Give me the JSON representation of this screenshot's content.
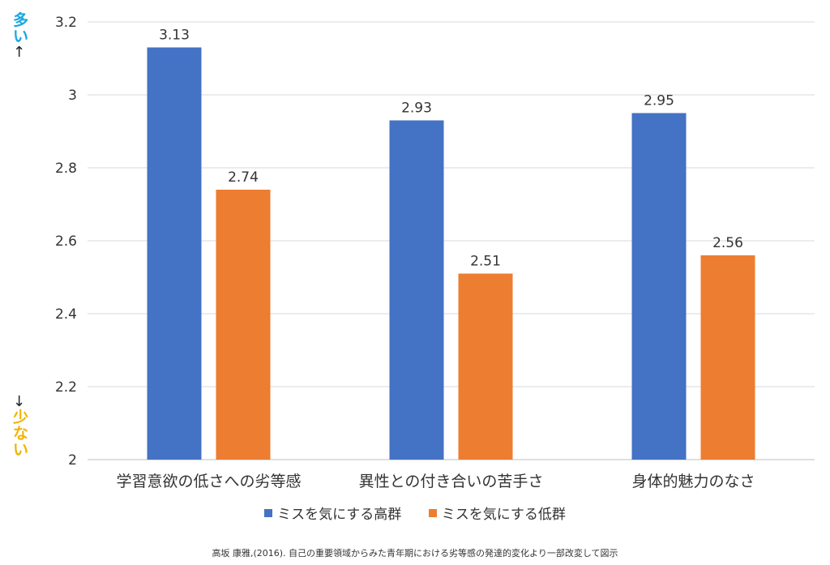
{
  "chart_data": {
    "type": "bar",
    "categories": [
      "学習意欲の低さへの劣等感",
      "異性との付き合いの苦手さ",
      "身体的魅力のなさ"
    ],
    "series": [
      {
        "name": "ミスを気にする高群",
        "values": [
          3.13,
          2.93,
          2.95
        ],
        "color": "#4472c4"
      },
      {
        "name": "ミスを気にする低群",
        "values": [
          2.74,
          2.51,
          2.56
        ],
        "color": "#ed7d31"
      }
    ],
    "data_labels": [
      [
        "3.13",
        "2.93",
        "2.95"
      ],
      [
        "2.74",
        "2.51",
        "2.56"
      ]
    ],
    "ylim": [
      2,
      3.2
    ],
    "yticks": [
      2,
      2.2,
      2.4,
      2.6,
      2.8,
      3,
      3.2
    ],
    "ytick_labels": [
      "2",
      "2.2",
      "2.4",
      "2.6",
      "2.8",
      "3",
      "3.2"
    ],
    "grid": true,
    "legend_position": "bottom"
  },
  "annotations": {
    "top_label_1": "多",
    "top_label_2": "い",
    "top_arrow": "↑",
    "bottom_arrow": "↓",
    "bottom_label_1": "少",
    "bottom_label_2": "な",
    "bottom_label_3": "い"
  },
  "legend": {
    "high_label": "ミスを気にする高群",
    "low_label": "ミスを気にする低群",
    "high_color": "#4472c4",
    "low_color": "#ed7d31"
  },
  "source_note": "高坂 康雅,(2016). 自己の重要領域からみた青年期における劣等感の発達的変化より一部改変して図示"
}
